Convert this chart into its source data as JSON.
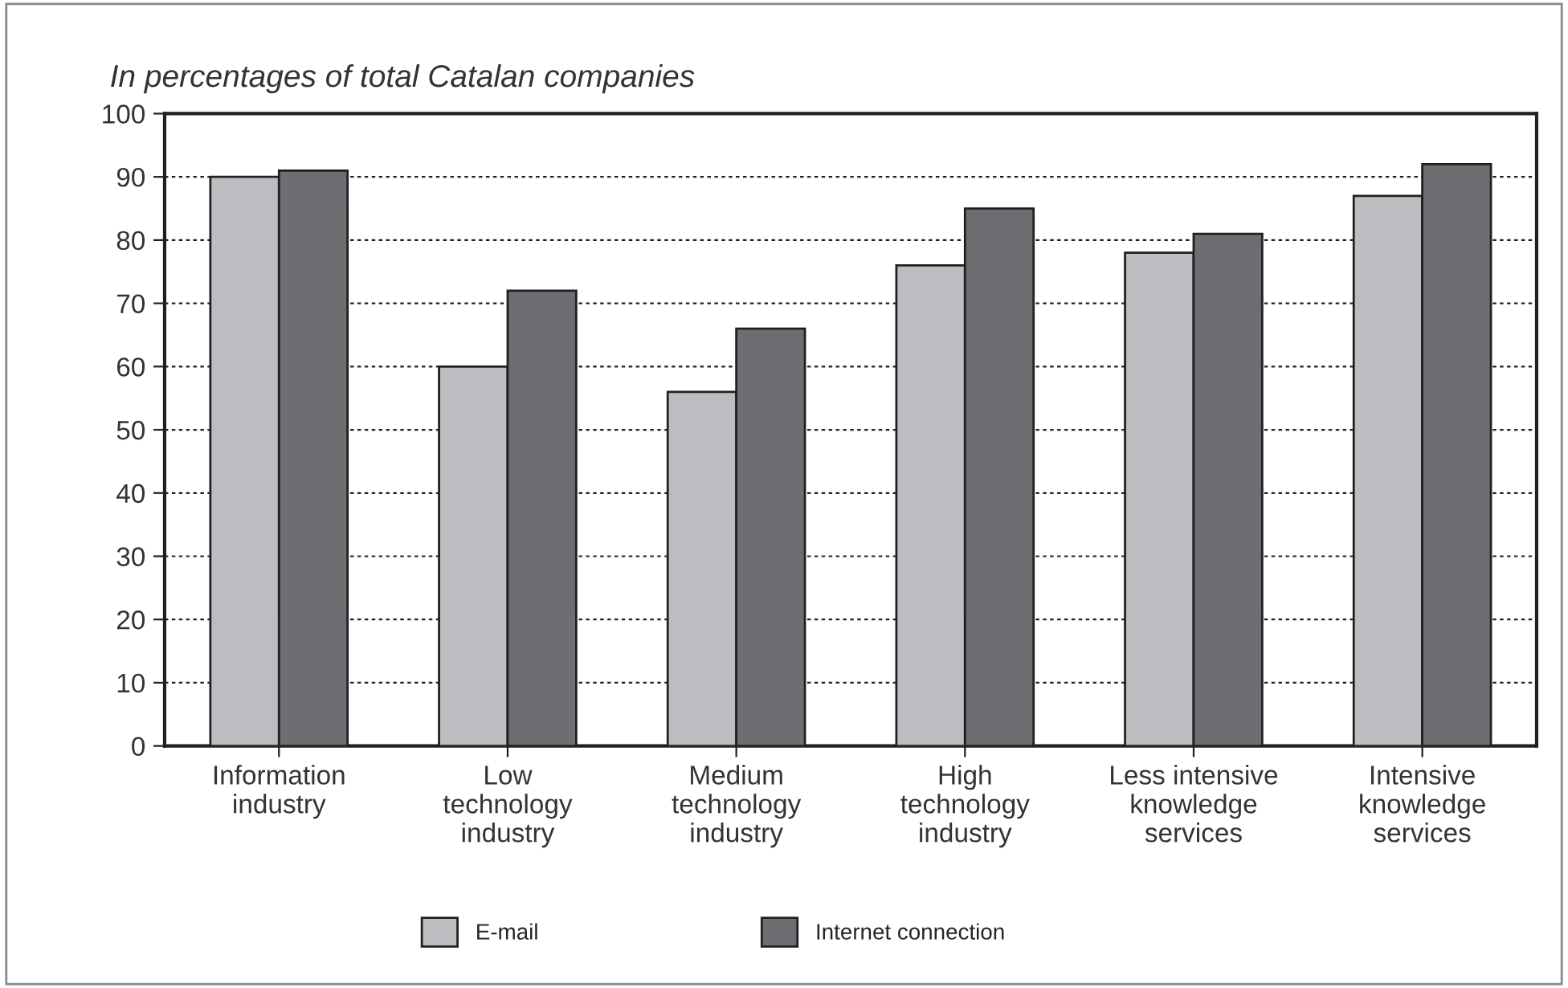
{
  "chart_data": {
    "type": "bar",
    "title": "In percentages of total Catalan companies",
    "categories": [
      "Information\nindustry",
      "Low\ntechnology\nindustry",
      "Medium\ntechnology\nindustry",
      "High\ntechnology\nindustry",
      "Less intensive\nknowledge\nservices",
      "Intensive\nknowledge\nservices"
    ],
    "series": [
      {
        "name": "E-mail",
        "color": "#bcbdc0",
        "values": [
          90,
          60,
          56,
          76,
          78,
          87
        ]
      },
      {
        "name": "Internet connection",
        "color": "#6d6e71",
        "values": [
          91,
          72,
          66,
          85,
          81,
          92
        ]
      }
    ],
    "ylim": [
      0,
      100
    ],
    "yticks": [
      0,
      10,
      20,
      30,
      40,
      50,
      60,
      70,
      80,
      90,
      100
    ],
    "grid": "y",
    "legend": "bottom"
  }
}
